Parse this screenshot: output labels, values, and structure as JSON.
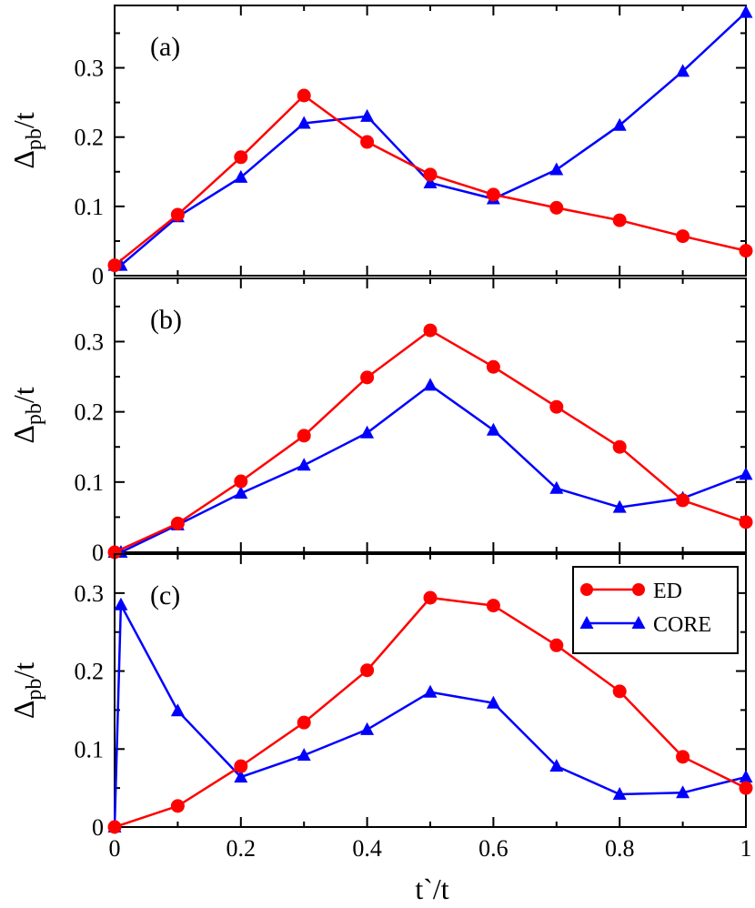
{
  "chart_data": [
    {
      "type": "line",
      "panel_label": "(a)",
      "xlabel": "",
      "ylabel": "Δpb/t",
      "xlim": [
        0,
        1
      ],
      "ylim": [
        0,
        0.39
      ],
      "yticks": [
        0,
        0.1,
        0.2,
        0.3
      ],
      "ytick_labels": [
        "0",
        "0.1",
        "0.2",
        "0.3"
      ],
      "series": [
        {
          "name": "ED",
          "marker": "circle",
          "color": "#ff0000",
          "x": [
            0,
            0.1,
            0.2,
            0.3,
            0.4,
            0.5,
            0.6,
            0.7,
            0.8,
            0.9,
            1.0
          ],
          "y": [
            0.015,
            0.088,
            0.171,
            0.26,
            0.193,
            0.146,
            0.117,
            0.098,
            0.08,
            0.057,
            0.036
          ]
        },
        {
          "name": "CORE",
          "marker": "triangle",
          "color": "#0000ff",
          "x": [
            0,
            0.01,
            0.1,
            0.2,
            0.3,
            0.4,
            0.5,
            0.6,
            0.7,
            0.8,
            0.9,
            1.0
          ],
          "y": [
            0.015,
            0.015,
            0.085,
            0.142,
            0.22,
            0.23,
            0.134,
            0.111,
            0.153,
            0.217,
            0.295,
            0.38
          ]
        }
      ]
    },
    {
      "type": "line",
      "panel_label": "(b)",
      "xlabel": "",
      "ylabel": "Δpb/t",
      "xlim": [
        0,
        1
      ],
      "ylim": [
        0,
        0.39
      ],
      "yticks": [
        0,
        0.1,
        0.2,
        0.3
      ],
      "ytick_labels": [
        "0",
        "0.1",
        "0.2",
        "0.3"
      ],
      "series": [
        {
          "name": "ED",
          "marker": "circle",
          "color": "#ff0000",
          "x": [
            0,
            0.1,
            0.2,
            0.3,
            0.4,
            0.5,
            0.6,
            0.7,
            0.8,
            0.9,
            1.0
          ],
          "y": [
            0.0,
            0.041,
            0.101,
            0.166,
            0.249,
            0.316,
            0.264,
            0.207,
            0.15,
            0.074,
            0.043
          ]
        },
        {
          "name": "CORE",
          "marker": "triangle",
          "color": "#0000ff",
          "x": [
            0,
            0.01,
            0.1,
            0.2,
            0.3,
            0.4,
            0.5,
            0.6,
            0.7,
            0.8,
            0.9,
            1.0
          ],
          "y": [
            0.0,
            0.0,
            0.039,
            0.084,
            0.124,
            0.17,
            0.238,
            0.174,
            0.091,
            0.064,
            0.077,
            0.111
          ]
        }
      ]
    },
    {
      "type": "line",
      "panel_label": "(c)",
      "xlabel": "t`/t",
      "ylabel": "Δpb/t",
      "xlim": [
        0,
        1
      ],
      "ylim": [
        0,
        0.35
      ],
      "yticks": [
        0,
        0.1,
        0.2,
        0.3
      ],
      "ytick_labels": [
        "0",
        "0.1",
        "0.2",
        "0.3"
      ],
      "xticks": [
        0,
        0.2,
        0.4,
        0.6,
        0.8,
        1
      ],
      "xtick_labels": [
        "0",
        "0.2",
        "0.4",
        "0.6",
        "0.8",
        "1"
      ],
      "legend": {
        "placement": "top-right",
        "entries": [
          "ED",
          "CORE"
        ]
      },
      "series": [
        {
          "name": "ED",
          "marker": "circle",
          "color": "#ff0000",
          "x": [
            0,
            0.1,
            0.2,
            0.3,
            0.4,
            0.5,
            0.6,
            0.7,
            0.8,
            0.9,
            1.0
          ],
          "y": [
            0.0,
            0.027,
            0.078,
            0.134,
            0.201,
            0.294,
            0.284,
            0.233,
            0.174,
            0.09,
            0.05
          ]
        },
        {
          "name": "CORE",
          "marker": "triangle",
          "color": "#0000ff",
          "x": [
            0,
            0.01,
            0.1,
            0.2,
            0.3,
            0.4,
            0.5,
            0.6,
            0.7,
            0.8,
            0.9,
            1.0
          ],
          "y": [
            0.0,
            0.285,
            0.149,
            0.064,
            0.092,
            0.125,
            0.173,
            0.159,
            0.078,
            0.042,
            0.044,
            0.064
          ]
        }
      ]
    }
  ],
  "axis": {
    "x_title_main": "t`/t",
    "y_title_delta": "Δ",
    "y_title_sub": "pb",
    "y_title_tail": "/t"
  },
  "legend": {
    "ed_label": "ED",
    "core_label": "CORE"
  }
}
